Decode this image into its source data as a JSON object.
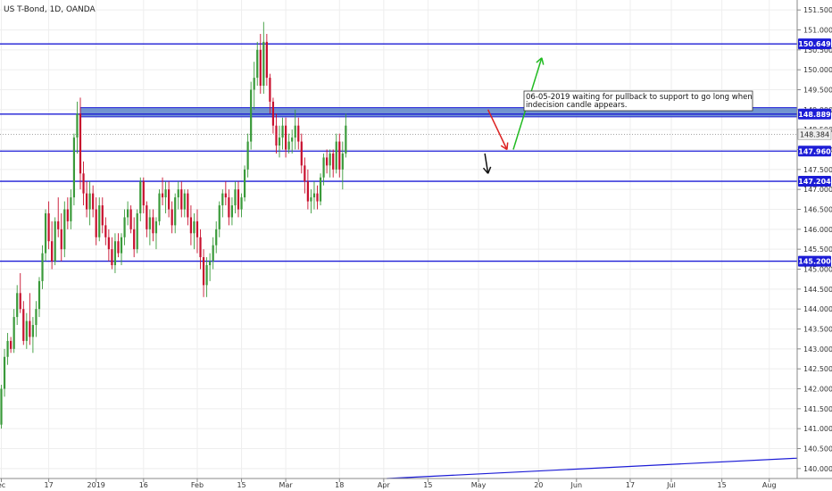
{
  "header": {
    "title": "US T-Bond, 1D, OANDA"
  },
  "annotation": {
    "line1": "06-05-2019 waiting for pullback to support to go long when",
    "line2": "indecision candle appears."
  },
  "colors": {
    "up": "#3a9a3a",
    "down": "#c8102e",
    "level": "#1c1cd6",
    "zone": "#5b82c8",
    "arrow_green": "#22bb22",
    "arrow_red": "#dd2222",
    "arrow_black": "#111111",
    "grid": "#eeeeee"
  },
  "chart_data": {
    "type": "candlestick",
    "ylim": [
      139.75,
      151.75
    ],
    "y_ticks": [
      "140.000",
      "140.500",
      "141.000",
      "141.500",
      "142.000",
      "142.500",
      "143.000",
      "143.500",
      "144.000",
      "144.500",
      "145.000",
      "145.500",
      "146.000",
      "146.500",
      "147.000",
      "147.500",
      "148.000",
      "148.500",
      "149.000",
      "149.500",
      "150.000",
      "150.500",
      "151.000",
      "151.500"
    ],
    "x_ticks": [
      {
        "label": "ec",
        "day": 0
      },
      {
        "label": "17",
        "day": 15
      },
      {
        "label": "2019",
        "day": 30
      },
      {
        "label": "16",
        "day": 45
      },
      {
        "label": "Feb",
        "day": 62
      },
      {
        "label": "15",
        "day": 76
      },
      {
        "label": "Mar",
        "day": 90
      },
      {
        "label": "18",
        "day": 107
      },
      {
        "label": "Apr",
        "day": 121
      },
      {
        "label": "15",
        "day": 135
      },
      {
        "label": "May",
        "day": 151
      },
      {
        "label": "20",
        "day": 170
      },
      {
        "label": "Jun",
        "day": 182
      },
      {
        "label": "17",
        "day": 199
      },
      {
        "label": "Jul",
        "day": 212
      },
      {
        "label": "15",
        "day": 228
      },
      {
        "label": "Aug",
        "day": 243
      }
    ],
    "levels": [
      {
        "price": 150.649,
        "label": "150.649"
      },
      {
        "price": 148.889,
        "label": "148.889"
      },
      {
        "price": 147.96,
        "label": "147.960"
      },
      {
        "price": 147.204,
        "label": "147.204"
      },
      {
        "price": 145.2,
        "label": "145.200"
      }
    ],
    "current_price": {
      "price": 148.384,
      "label": "148.384"
    },
    "zone": {
      "from_day": 25,
      "to_day": 254,
      "low": 148.82,
      "high": 149.05
    },
    "trendline": {
      "from": {
        "day": 122,
        "price": 139.75
      },
      "to": {
        "day": 262,
        "price": 140.3
      }
    },
    "arrows": [
      {
        "color": "arrow_red",
        "from": {
          "day": 154,
          "price": 149.0
        },
        "to": {
          "day": 160,
          "price": 148.0
        }
      },
      {
        "color": "arrow_green",
        "from": {
          "day": 162,
          "price": 148.0
        },
        "to": {
          "day": 171,
          "price": 150.3
        }
      },
      {
        "color": "arrow_black",
        "from": {
          "day": 153,
          "price": 147.9
        },
        "to": {
          "day": 154,
          "price": 147.4
        }
      }
    ],
    "candles": [
      [
        0,
        141.1,
        142.1,
        141.0,
        142.0
      ],
      [
        1,
        142.0,
        143.0,
        141.8,
        142.8
      ],
      [
        2,
        142.8,
        143.4,
        142.6,
        143.2
      ],
      [
        3,
        143.2,
        143.3,
        142.9,
        143.0
      ],
      [
        4,
        143.0,
        144.0,
        142.9,
        143.8
      ],
      [
        5,
        143.8,
        144.6,
        143.6,
        144.4
      ],
      [
        6,
        144.4,
        144.9,
        143.9,
        144.0
      ],
      [
        7,
        144.0,
        144.2,
        143.1,
        143.2
      ],
      [
        8,
        143.2,
        143.9,
        143.0,
        143.7
      ],
      [
        9,
        143.7,
        144.4,
        143.1,
        143.3
      ],
      [
        10,
        143.3,
        143.8,
        142.9,
        143.6
      ],
      [
        11,
        143.6,
        144.2,
        143.3,
        144.0
      ],
      [
        12,
        144.0,
        144.8,
        143.8,
        144.7
      ],
      [
        13,
        144.7,
        145.6,
        144.5,
        145.4
      ],
      [
        14,
        145.4,
        146.5,
        145.2,
        146.4
      ],
      [
        15,
        146.4,
        146.7,
        145.5,
        145.7
      ],
      [
        16,
        145.7,
        146.2,
        145.0,
        145.2
      ],
      [
        17,
        145.2,
        146.3,
        145.1,
        146.2
      ],
      [
        18,
        146.2,
        146.8,
        145.8,
        146.0
      ],
      [
        19,
        146.0,
        146.4,
        145.2,
        145.5
      ],
      [
        20,
        145.5,
        146.7,
        145.3,
        146.5
      ],
      [
        21,
        146.5,
        146.8,
        146.0,
        146.2
      ],
      [
        22,
        146.2,
        147.0,
        146.0,
        146.8
      ],
      [
        23,
        146.8,
        148.4,
        146.6,
        148.3
      ],
      [
        24,
        148.3,
        149.2,
        147.9,
        148.9
      ],
      [
        25,
        148.9,
        149.3,
        147.0,
        147.4
      ],
      [
        26,
        147.4,
        147.7,
        146.6,
        146.9
      ],
      [
        27,
        146.9,
        147.2,
        146.3,
        146.5
      ],
      [
        28,
        146.5,
        147.2,
        146.1,
        146.9
      ],
      [
        29,
        146.9,
        147.1,
        146.3,
        146.5
      ],
      [
        30,
        146.5,
        146.8,
        145.6,
        145.8
      ],
      [
        31,
        145.8,
        146.8,
        145.7,
        146.6
      ],
      [
        32,
        146.6,
        146.8,
        145.9,
        146.1
      ],
      [
        33,
        146.1,
        146.3,
        145.6,
        145.8
      ],
      [
        34,
        145.8,
        146.0,
        145.2,
        145.5
      ],
      [
        35,
        145.5,
        145.8,
        145.0,
        145.1
      ],
      [
        36,
        145.1,
        145.9,
        144.9,
        145.7
      ],
      [
        37,
        145.7,
        145.9,
        145.3,
        145.4
      ],
      [
        38,
        145.4,
        145.9,
        145.1,
        145.8
      ],
      [
        39,
        145.8,
        146.5,
        145.6,
        146.3
      ],
      [
        40,
        146.3,
        146.7,
        146.1,
        146.5
      ],
      [
        41,
        146.5,
        146.6,
        145.9,
        146.0
      ],
      [
        42,
        146.0,
        146.3,
        145.3,
        145.5
      ],
      [
        43,
        145.5,
        146.5,
        145.4,
        146.4
      ],
      [
        44,
        146.4,
        147.3,
        146.2,
        147.2
      ],
      [
        45,
        147.2,
        147.3,
        146.4,
        146.6
      ],
      [
        46,
        146.6,
        146.7,
        145.8,
        146.0
      ],
      [
        47,
        146.0,
        146.5,
        145.6,
        146.3
      ],
      [
        48,
        146.3,
        146.5,
        145.7,
        145.9
      ],
      [
        49,
        145.9,
        146.3,
        145.5,
        146.2
      ],
      [
        50,
        146.2,
        147.0,
        146.1,
        146.9
      ],
      [
        51,
        146.9,
        147.3,
        146.6,
        146.8
      ],
      [
        52,
        146.8,
        147.2,
        146.4,
        147.0
      ],
      [
        53,
        147.0,
        147.2,
        146.3,
        146.5
      ],
      [
        54,
        146.5,
        146.7,
        145.9,
        146.1
      ],
      [
        55,
        146.1,
        146.9,
        145.9,
        146.8
      ],
      [
        56,
        146.8,
        147.2,
        146.5,
        147.0
      ],
      [
        57,
        147.0,
        147.2,
        146.3,
        146.5
      ],
      [
        58,
        146.5,
        147.0,
        146.3,
        146.9
      ],
      [
        59,
        146.9,
        147.0,
        146.1,
        146.3
      ],
      [
        60,
        146.3,
        146.6,
        145.6,
        145.9
      ],
      [
        61,
        145.9,
        146.4,
        145.5,
        146.2
      ],
      [
        62,
        146.2,
        146.5,
        145.4,
        145.8
      ],
      [
        63,
        145.8,
        146.0,
        145.0,
        145.3
      ],
      [
        64,
        145.3,
        145.5,
        144.3,
        144.6
      ],
      [
        65,
        144.6,
        145.3,
        144.3,
        145.1
      ],
      [
        66,
        145.1,
        145.4,
        144.7,
        145.2
      ],
      [
        67,
        145.2,
        145.8,
        145.0,
        145.6
      ],
      [
        68,
        145.6,
        146.2,
        145.4,
        146.0
      ],
      [
        69,
        146.0,
        146.7,
        145.8,
        146.6
      ],
      [
        70,
        146.6,
        147.0,
        146.3,
        146.9
      ],
      [
        71,
        146.9,
        147.2,
        146.6,
        146.8
      ],
      [
        72,
        146.8,
        147.0,
        146.1,
        146.3
      ],
      [
        73,
        146.3,
        146.8,
        146.1,
        146.6
      ],
      [
        74,
        146.6,
        147.2,
        146.4,
        147.0
      ],
      [
        75,
        147.0,
        147.2,
        146.3,
        146.5
      ],
      [
        76,
        146.5,
        146.9,
        146.3,
        146.8
      ],
      [
        77,
        146.8,
        147.6,
        146.7,
        147.5
      ],
      [
        78,
        147.5,
        148.4,
        147.3,
        148.2
      ],
      [
        79,
        148.2,
        149.7,
        148.0,
        149.5
      ],
      [
        80,
        149.5,
        150.2,
        149.0,
        149.8
      ],
      [
        81,
        149.8,
        150.7,
        149.6,
        150.5
      ],
      [
        82,
        150.5,
        150.9,
        149.4,
        149.6
      ],
      [
        83,
        149.6,
        151.2,
        149.4,
        150.7
      ],
      [
        84,
        150.7,
        150.9,
        149.6,
        149.8
      ],
      [
        85,
        149.8,
        149.9,
        148.9,
        149.2
      ],
      [
        86,
        149.2,
        149.3,
        148.4,
        148.6
      ],
      [
        87,
        148.6,
        148.9,
        147.9,
        148.1
      ],
      [
        88,
        148.1,
        148.6,
        147.8,
        148.3
      ],
      [
        89,
        148.3,
        148.8,
        148.0,
        148.6
      ],
      [
        90,
        148.6,
        148.8,
        147.8,
        148.0
      ],
      [
        91,
        148.0,
        148.4,
        147.9,
        148.2
      ],
      [
        92,
        148.2,
        148.5,
        147.9,
        148.3
      ],
      [
        93,
        148.3,
        149.0,
        148.0,
        148.6
      ],
      [
        94,
        148.6,
        148.8,
        148.0,
        148.2
      ],
      [
        95,
        148.2,
        148.4,
        147.4,
        147.6
      ],
      [
        96,
        147.6,
        147.8,
        146.9,
        147.2
      ],
      [
        97,
        147.2,
        147.5,
        146.5,
        146.7
      ],
      [
        98,
        146.7,
        147.0,
        146.4,
        146.8
      ],
      [
        99,
        146.8,
        147.2,
        146.5,
        146.9
      ],
      [
        100,
        146.9,
        147.1,
        146.5,
        146.7
      ],
      [
        101,
        146.7,
        147.4,
        146.6,
        147.3
      ],
      [
        102,
        147.3,
        147.9,
        147.1,
        147.8
      ],
      [
        103,
        147.8,
        148.0,
        147.4,
        147.6
      ],
      [
        104,
        147.6,
        148.0,
        147.3,
        147.9
      ],
      [
        105,
        147.9,
        148.0,
        147.3,
        147.5
      ],
      [
        106,
        147.5,
        148.4,
        147.4,
        148.2
      ],
      [
        107,
        148.2,
        148.4,
        147.3,
        147.5
      ],
      [
        108,
        147.5,
        148.2,
        147.0,
        147.9
      ],
      [
        109,
        147.9,
        148.9,
        147.8,
        148.6
      ]
    ]
  }
}
